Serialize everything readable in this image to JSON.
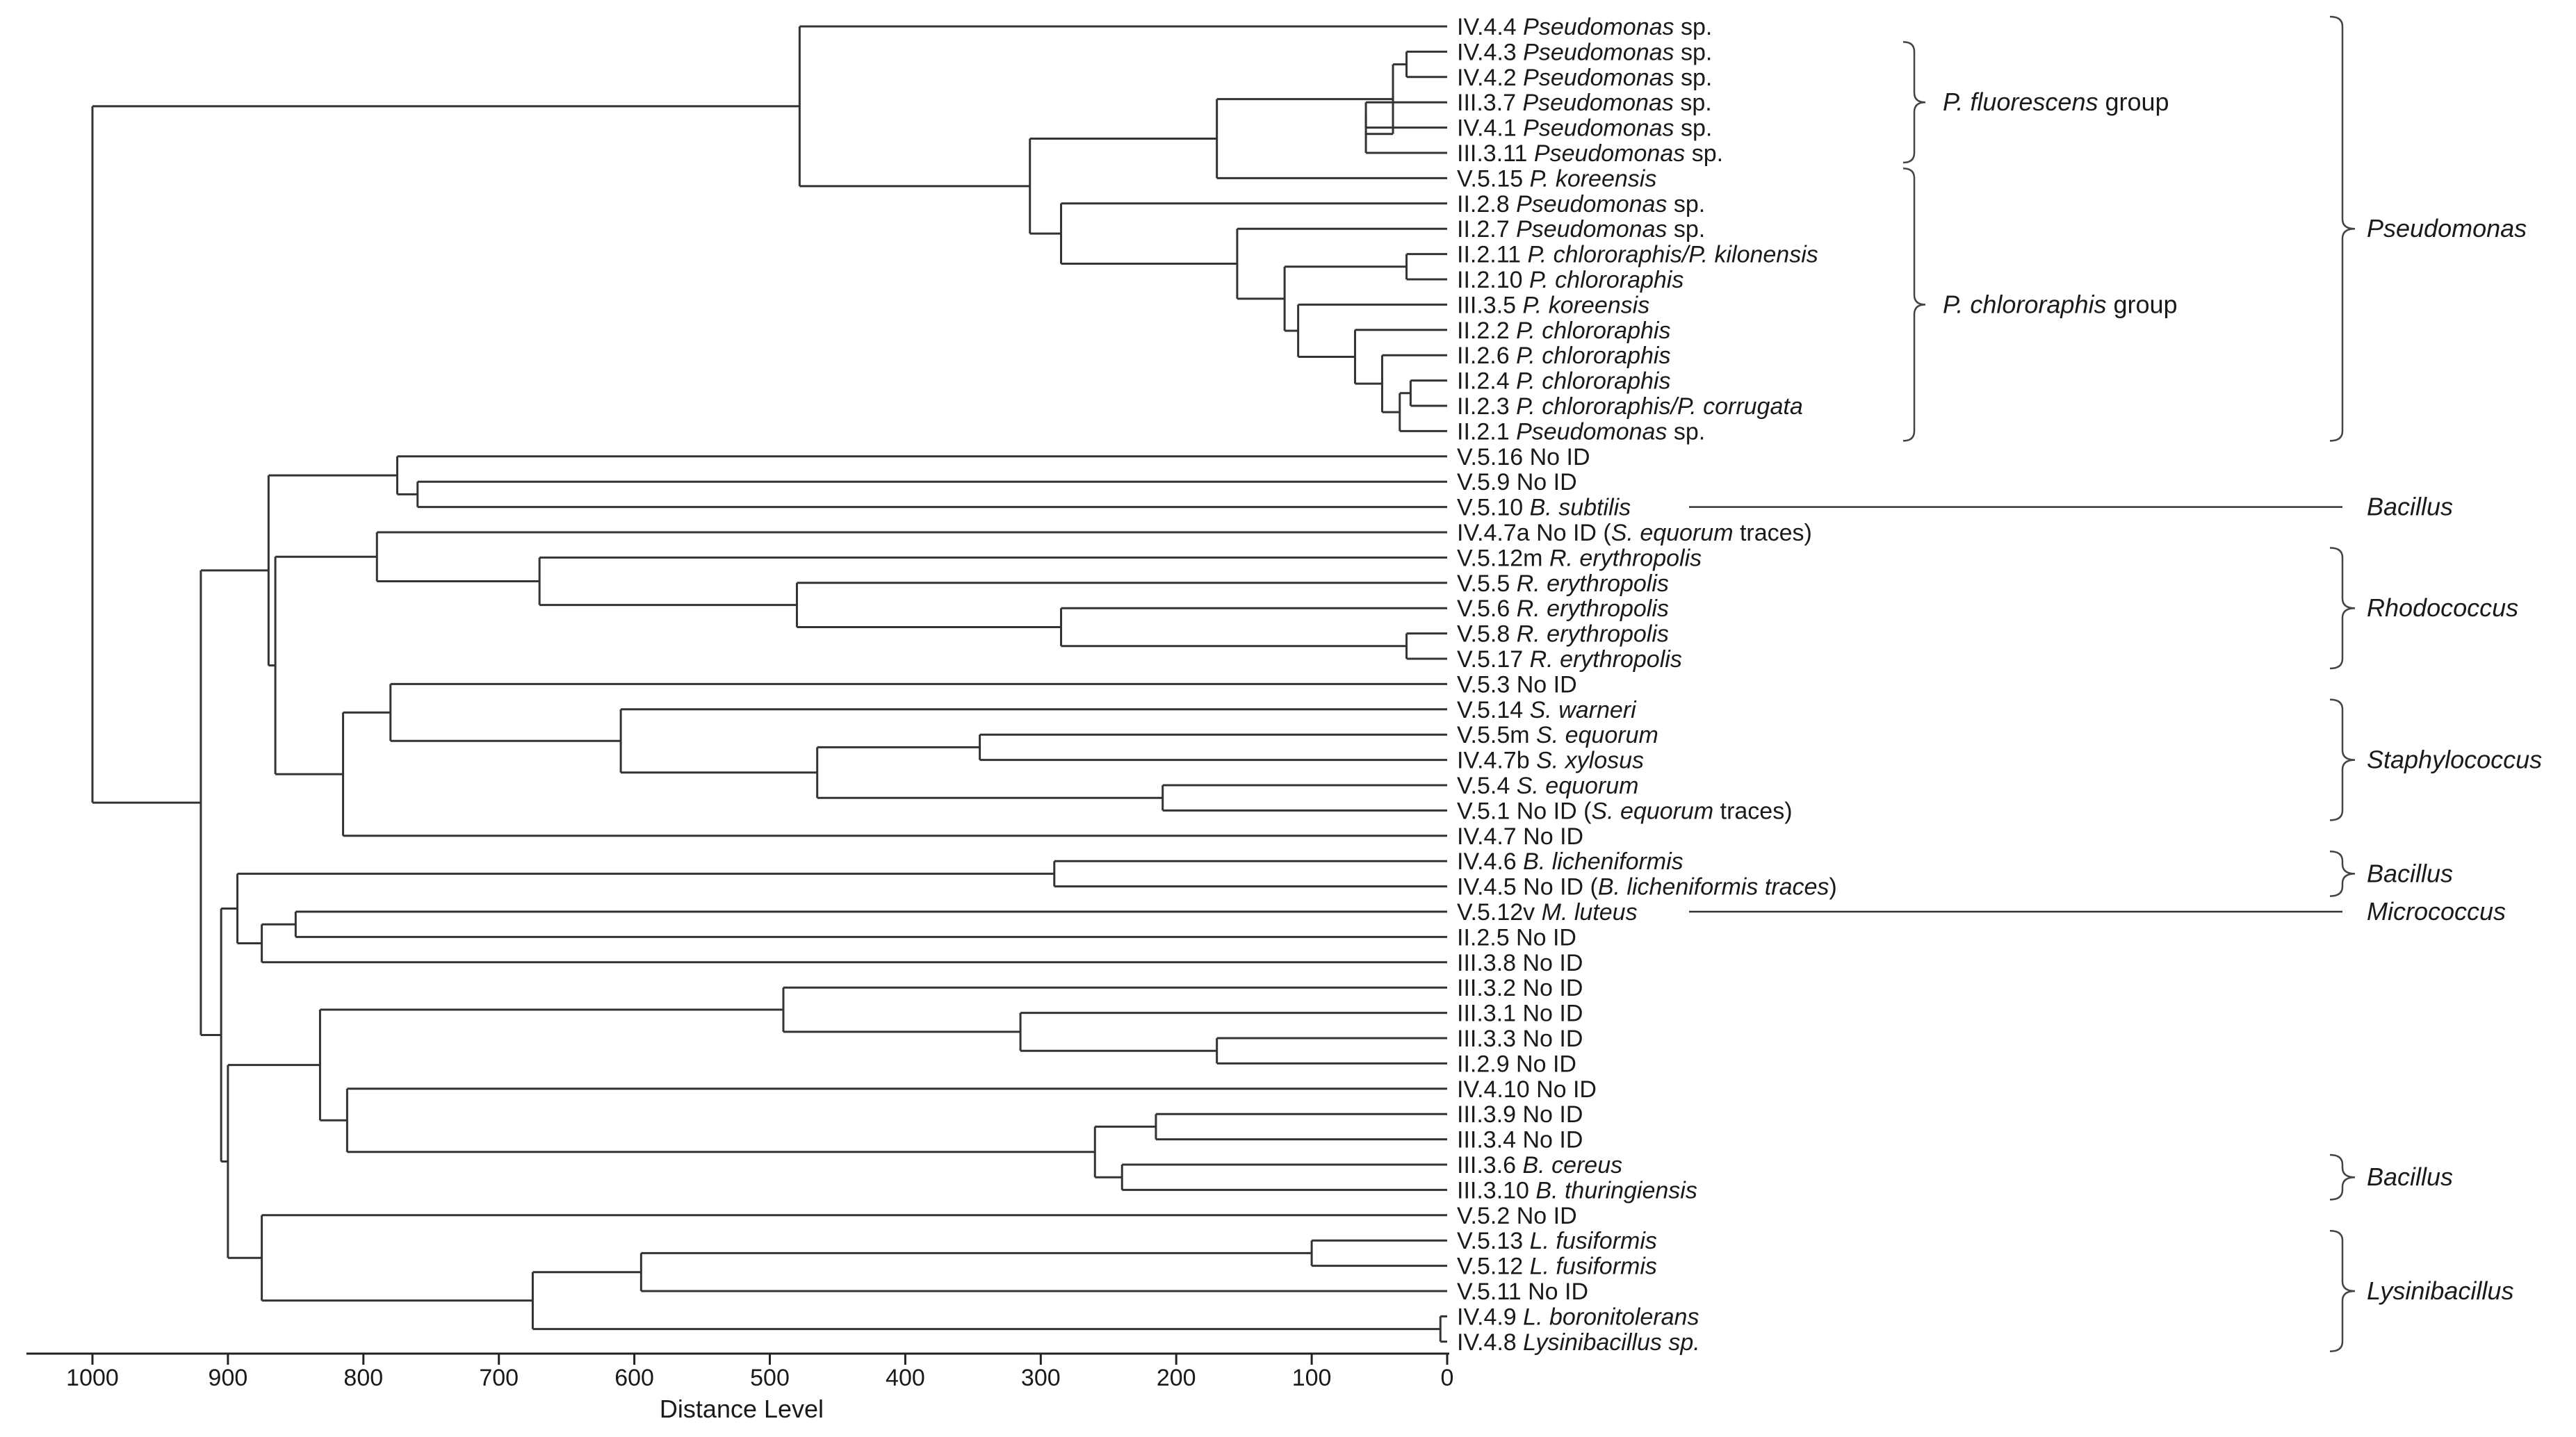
{
  "xaxis": {
    "label": "Distance Level",
    "ticks": [
      "1000",
      "900",
      "800",
      "700",
      "600",
      "500",
      "400",
      "300",
      "200",
      "100",
      "0"
    ]
  },
  "leaves": [
    [
      {
        "t": "IV.4.4  "
      },
      {
        "t": "Pseudomonas",
        "i": true
      },
      {
        "t": " sp."
      }
    ],
    [
      {
        "t": "IV.4.3  "
      },
      {
        "t": "Pseudomonas",
        "i": true
      },
      {
        "t": " sp."
      }
    ],
    [
      {
        "t": "IV.4.2  "
      },
      {
        "t": "Pseudomonas",
        "i": true
      },
      {
        "t": " sp."
      }
    ],
    [
      {
        "t": "III.3.7  "
      },
      {
        "t": "Pseudomonas",
        "i": true
      },
      {
        "t": " sp."
      }
    ],
    [
      {
        "t": "IV.4.1  "
      },
      {
        "t": "Pseudomonas",
        "i": true
      },
      {
        "t": " sp."
      }
    ],
    [
      {
        "t": "III.3.11  "
      },
      {
        "t": "Pseudomonas",
        "i": true
      },
      {
        "t": " sp."
      }
    ],
    [
      {
        "t": "V.5.15  "
      },
      {
        "t": "P. koreensis",
        "i": true
      }
    ],
    [
      {
        "t": "II.2.8  "
      },
      {
        "t": "Pseudomonas",
        "i": true
      },
      {
        "t": " sp."
      }
    ],
    [
      {
        "t": "II.2.7  "
      },
      {
        "t": "Pseudomonas",
        "i": true
      },
      {
        "t": " sp."
      }
    ],
    [
      {
        "t": "II.2.11  "
      },
      {
        "t": "P. chlororaphis/P. kilonensis",
        "i": true
      }
    ],
    [
      {
        "t": "II.2.10  "
      },
      {
        "t": "P. chlororaphis",
        "i": true
      }
    ],
    [
      {
        "t": "III.3.5  "
      },
      {
        "t": "P. koreensis",
        "i": true
      }
    ],
    [
      {
        "t": "II.2.2  "
      },
      {
        "t": "P. chlororaphis",
        "i": true
      }
    ],
    [
      {
        "t": "II.2.6  "
      },
      {
        "t": "P. chlororaphis",
        "i": true
      }
    ],
    [
      {
        "t": "II.2.4  "
      },
      {
        "t": "P. chlororaphis",
        "i": true
      }
    ],
    [
      {
        "t": "II.2.3  "
      },
      {
        "t": "P. chlororaphis/P. corrugata",
        "i": true
      }
    ],
    [
      {
        "t": "II.2.1  "
      },
      {
        "t": "Pseudomonas",
        "i": true
      },
      {
        "t": " sp."
      }
    ],
    [
      {
        "t": "V.5.16  No ID"
      }
    ],
    [
      {
        "t": "V.5.9  No ID"
      }
    ],
    [
      {
        "t": "V.5.10  "
      },
      {
        "t": "B. subtilis",
        "i": true
      }
    ],
    [
      {
        "t": "IV.4.7a  No ID ("
      },
      {
        "t": "S. equorum",
        "i": true
      },
      {
        "t": " traces)"
      }
    ],
    [
      {
        "t": "V.5.12m  "
      },
      {
        "t": "R. erythropolis",
        "i": true
      }
    ],
    [
      {
        "t": "V.5.5  "
      },
      {
        "t": "R. erythropolis",
        "i": true
      }
    ],
    [
      {
        "t": "V.5.6  "
      },
      {
        "t": "R. erythropolis",
        "i": true
      }
    ],
    [
      {
        "t": "V.5.8  "
      },
      {
        "t": "R. erythropolis",
        "i": true
      }
    ],
    [
      {
        "t": "V.5.17  "
      },
      {
        "t": "R. erythropolis",
        "i": true
      }
    ],
    [
      {
        "t": "V.5.3  No ID"
      }
    ],
    [
      {
        "t": "V.5.14  "
      },
      {
        "t": "S. warneri",
        "i": true
      }
    ],
    [
      {
        "t": "V.5.5m  "
      },
      {
        "t": "S. equorum",
        "i": true
      }
    ],
    [
      {
        "t": "IV.4.7b  "
      },
      {
        "t": "S. xylosus",
        "i": true
      }
    ],
    [
      {
        "t": "V.5.4  "
      },
      {
        "t": "S. equorum",
        "i": true
      }
    ],
    [
      {
        "t": "V.5.1  No ID ("
      },
      {
        "t": "S. equorum",
        "i": true
      },
      {
        "t": " traces)"
      }
    ],
    [
      {
        "t": "IV.4.7  No ID"
      }
    ],
    [
      {
        "t": "IV.4.6  "
      },
      {
        "t": "B. licheniformis",
        "i": true
      }
    ],
    [
      {
        "t": "IV.4.5  No ID ("
      },
      {
        "t": "B. licheniformis traces",
        "i": true
      },
      {
        "t": ")"
      }
    ],
    [
      {
        "t": "V.5.12v  "
      },
      {
        "t": "M. luteus",
        "i": true
      }
    ],
    [
      {
        "t": "II.2.5  No ID"
      }
    ],
    [
      {
        "t": "III.3.8  No ID"
      }
    ],
    [
      {
        "t": "III.3.2  No ID"
      }
    ],
    [
      {
        "t": "III.3.1  No ID"
      }
    ],
    [
      {
        "t": "III.3.3  No ID"
      }
    ],
    [
      {
        "t": "II.2.9  No ID"
      }
    ],
    [
      {
        "t": "IV.4.10  No ID"
      }
    ],
    [
      {
        "t": "III.3.9  No ID"
      }
    ],
    [
      {
        "t": "III.3.4  No ID"
      }
    ],
    [
      {
        "t": "III.3.6  "
      },
      {
        "t": "B. cereus",
        "i": true
      }
    ],
    [
      {
        "t": "III.3.10  "
      },
      {
        "t": "B. thuringiensis",
        "i": true
      }
    ],
    [
      {
        "t": "V.5.2  No ID"
      }
    ],
    [
      {
        "t": "V.5.13  "
      },
      {
        "t": "L. fusiformis",
        "i": true
      }
    ],
    [
      {
        "t": "V.5.12  "
      },
      {
        "t": "L. fusiformis",
        "i": true
      }
    ],
    [
      {
        "t": "V.5.11  No ID"
      }
    ],
    [
      {
        "t": "IV.4.9  "
      },
      {
        "t": "L. boronitolerans",
        "i": true
      }
    ],
    [
      {
        "t": "IV.4.8  "
      },
      {
        "t": "Lysinibacillus sp.",
        "i": true
      }
    ]
  ],
  "tree": [
    [
      30,
      1,
      2
    ],
    [
      60,
      3,
      4
    ],
    [
      60,
      -2,
      5
    ],
    [
      40,
      -1,
      -3
    ],
    [
      170,
      -4,
      6
    ],
    [
      27,
      14,
      15
    ],
    [
      35,
      -6,
      16
    ],
    [
      48,
      13,
      -7
    ],
    [
      68,
      12,
      -8
    ],
    [
      110,
      11,
      -9
    ],
    [
      30,
      9,
      10
    ],
    [
      120,
      -11,
      -10
    ],
    [
      155,
      8,
      -12
    ],
    [
      285,
      7,
      -13
    ],
    [
      308,
      -5,
      -14
    ],
    [
      478,
      0,
      -15
    ],
    [
      30,
      24,
      25
    ],
    [
      285,
      23,
      -17
    ],
    [
      480,
      22,
      -18
    ],
    [
      670,
      21,
      -19
    ],
    [
      790,
      20,
      -20
    ],
    [
      210,
      30,
      31
    ],
    [
      345,
      28,
      29
    ],
    [
      465,
      -23,
      -22
    ],
    [
      610,
      27,
      -24
    ],
    [
      780,
      26,
      -25
    ],
    [
      815,
      -26,
      32
    ],
    [
      865,
      -21,
      -27
    ],
    [
      760,
      18,
      19
    ],
    [
      775,
      17,
      -29
    ],
    [
      870,
      -30,
      -28
    ],
    [
      290,
      33,
      34
    ],
    [
      850,
      35,
      36
    ],
    [
      875,
      -33,
      37
    ],
    [
      893,
      -32,
      -34
    ],
    [
      170,
      40,
      41
    ],
    [
      315,
      39,
      -36
    ],
    [
      490,
      38,
      -37
    ],
    [
      215,
      43,
      44
    ],
    [
      240,
      45,
      46
    ],
    [
      260,
      -39,
      -40
    ],
    [
      812,
      42,
      -41
    ],
    [
      832,
      -38,
      -42
    ],
    [
      100,
      48,
      49
    ],
    [
      595,
      -44,
      50
    ],
    [
      5,
      51,
      52
    ],
    [
      675,
      -45,
      -46
    ],
    [
      875,
      47,
      -47
    ],
    [
      900,
      -43,
      -48
    ],
    [
      905,
      -35,
      -49
    ],
    [
      920,
      -31,
      -50
    ],
    [
      1000,
      -16,
      -51
    ]
  ],
  "groups": [
    {
      "label_parts": [
        {
          "t": "P. fluorescens",
          "i": true
        },
        {
          "t": " group"
        }
      ],
      "from": 1,
      "to": 5,
      "style": "inner"
    },
    {
      "label_parts": [
        {
          "t": "P. chlororaphis",
          "i": true
        },
        {
          "t": " group"
        }
      ],
      "from": 6,
      "to": 16,
      "style": "inner"
    },
    {
      "label_parts": [
        {
          "t": "Pseudomonas",
          "i": true
        }
      ],
      "from": 0,
      "to": 16,
      "style": "outer"
    },
    {
      "label_parts": [
        {
          "t": "Bacillus",
          "i": true
        }
      ],
      "from": 19,
      "to": 19,
      "style": "line"
    },
    {
      "label_parts": [
        {
          "t": "Rhodococcus",
          "i": true
        }
      ],
      "from": 21,
      "to": 25,
      "style": "outer"
    },
    {
      "label_parts": [
        {
          "t": "Staphylococcus",
          "i": true
        }
      ],
      "from": 27,
      "to": 31,
      "style": "outer"
    },
    {
      "label_parts": [
        {
          "t": "Bacillus",
          "i": true
        }
      ],
      "from": 33,
      "to": 34,
      "style": "outer"
    },
    {
      "label_parts": [
        {
          "t": "Micrococcus",
          "i": true
        }
      ],
      "from": 35,
      "to": 35,
      "style": "line"
    },
    {
      "label_parts": [
        {
          "t": "Bacillus",
          "i": true
        }
      ],
      "from": 45,
      "to": 46,
      "style": "outer"
    },
    {
      "label_parts": [
        {
          "t": "Lysinibacillus",
          "i": true
        }
      ],
      "from": 48,
      "to": 52,
      "style": "outer"
    }
  ],
  "colors": {
    "line": "#333333",
    "text": "#1a1a1a"
  }
}
